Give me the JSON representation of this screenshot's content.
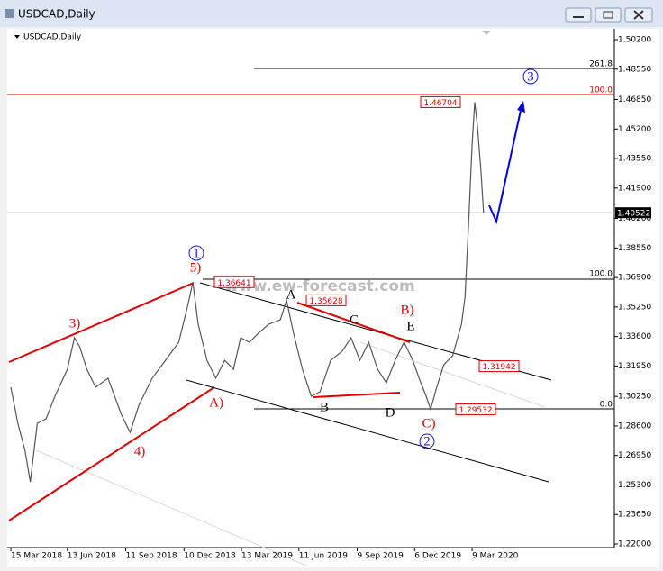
{
  "window_title": "USDCAD,Daily",
  "chart_data": {
    "type": "line",
    "title": "USDCAD,Daily",
    "watermark": "www.ew-forecast.com",
    "xlim": [
      0,
      683
    ],
    "xticks": [
      {
        "value": 0,
        "label": "15 Mar 2018"
      },
      {
        "value": 64,
        "label": "13 Jun 2018"
      },
      {
        "value": 130,
        "label": "11 Sep 2018"
      },
      {
        "value": 196,
        "label": "10 Dec 2018"
      },
      {
        "value": 261,
        "label": "13 Mar 2019"
      },
      {
        "value": 326,
        "label": "11 Jun 2019"
      },
      {
        "value": 392,
        "label": "9 Sep 2019"
      },
      {
        "value": 457,
        "label": "6 Dec 2019"
      },
      {
        "value": 522,
        "label": "9 Mar 2020"
      }
    ],
    "ylim": [
      1.22,
      1.502
    ],
    "yticks": [
      {
        "value": 1.502,
        "label": "1.50200"
      },
      {
        "value": 1.4855,
        "label": "1.48550"
      },
      {
        "value": 1.4685,
        "label": "1.46850"
      },
      {
        "value": 1.452,
        "label": "1.45200"
      },
      {
        "value": 1.4355,
        "label": "1.43550"
      },
      {
        "value": 1.419,
        "label": "1.41900"
      },
      {
        "value": 1.402,
        "label": "1.40200"
      },
      {
        "value": 1.3855,
        "label": "1.38550"
      },
      {
        "value": 1.369,
        "label": "1.36900"
      },
      {
        "value": 1.3525,
        "label": "1.35250"
      },
      {
        "value": 1.336,
        "label": "1.33600"
      },
      {
        "value": 1.3195,
        "label": "1.31950"
      },
      {
        "value": 1.3025,
        "label": "1.30250"
      },
      {
        "value": 1.286,
        "label": "1.28600"
      },
      {
        "value": 1.2695,
        "label": "1.26950"
      },
      {
        "value": 1.253,
        "label": "1.25300"
      },
      {
        "value": 1.2365,
        "label": "1.23650"
      },
      {
        "value": 1.22,
        "label": "1.22000"
      }
    ],
    "series": [
      {
        "name": "USDCAD",
        "color": "#555555",
        "x": [
          0,
          8,
          16,
          22,
          30,
          40,
          50,
          64,
          72,
          78,
          86,
          96,
          110,
          125,
          135,
          145,
          160,
          175,
          190,
          200,
          206,
          212,
          222,
          232,
          242,
          252,
          260,
          270,
          280,
          292,
          305,
          312,
          320,
          330,
          340,
          350,
          362,
          375,
          385,
          395,
          405,
          415,
          425,
          435,
          445,
          455,
          462,
          470,
          475,
          482,
          490,
          500,
          510,
          514,
          518,
          522,
          525,
          528,
          532,
          535
        ],
        "values": [
          1.3076,
          1.2875,
          1.2724,
          1.2547,
          1.2875,
          1.29,
          1.3026,
          1.3177,
          1.3353,
          1.3303,
          1.3177,
          1.3076,
          1.3127,
          1.2925,
          1.2824,
          1.2976,
          1.3127,
          1.3227,
          1.3328,
          1.3529,
          1.3664,
          1.3429,
          1.3227,
          1.3127,
          1.3227,
          1.3177,
          1.3353,
          1.3328,
          1.3378,
          1.3429,
          1.3454,
          1.3563,
          1.3378,
          1.3177,
          1.3026,
          1.3051,
          1.3227,
          1.3278,
          1.3353,
          1.3227,
          1.3328,
          1.3177,
          1.3101,
          1.3227,
          1.3328,
          1.3227,
          1.3127,
          1.3026,
          1.2953,
          1.3076,
          1.3202,
          1.3253,
          1.3429,
          1.358,
          1.3983,
          1.4436,
          1.467,
          1.4536,
          1.4285,
          1.4052
        ]
      }
    ],
    "current_price": 1.40522,
    "levels": [
      1.46704,
      1.36641,
      1.35628,
      1.31942,
      1.29532
    ],
    "fib_labels": [
      "261.8",
      "100.0",
      "100.0",
      "0.0"
    ],
    "wave_labels": [
      "1",
      "5)",
      "3)",
      "4)",
      "A)",
      "A",
      "B",
      "C",
      "D",
      "E",
      "B)",
      "C)",
      "2",
      "3"
    ]
  }
}
